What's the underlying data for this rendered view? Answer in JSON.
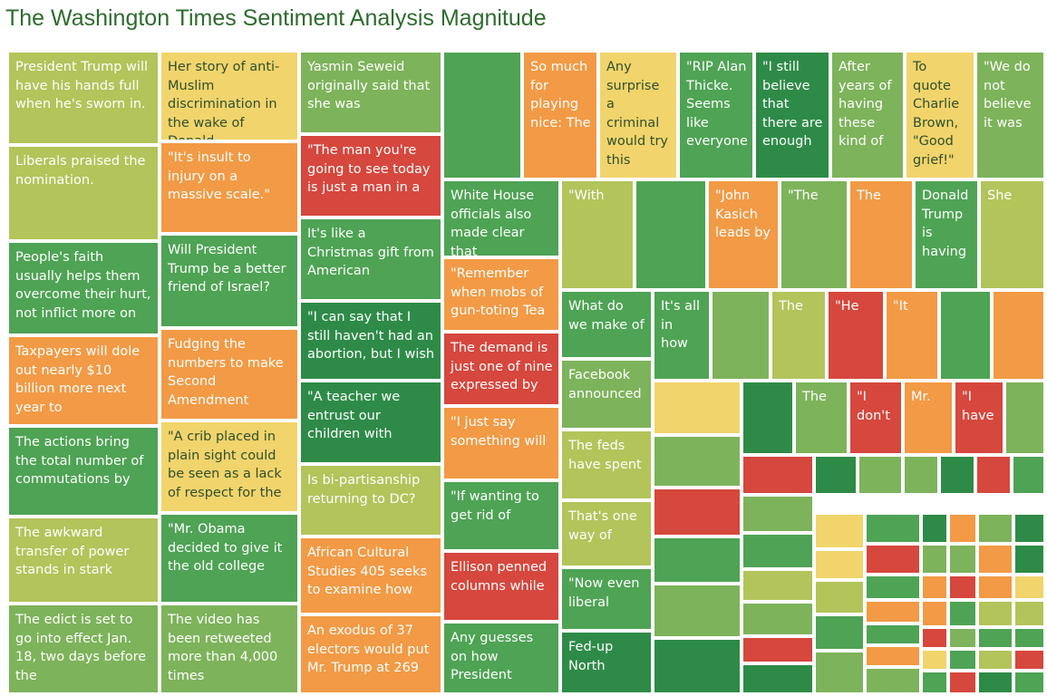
{
  "title": "The Washington Times Sentiment Analysis Magnitude",
  "colors": {
    "dark_green": "#2e8b47",
    "green": "#4ea354",
    "light_green": "#7db35a",
    "yellow_green": "#b2c45a",
    "yellow": "#f1d46b",
    "orange": "#f29a45",
    "red": "#d6473d"
  },
  "chart_data": {
    "type": "treemap",
    "measure": "Sentiment Analysis Magnitude",
    "color_scale": [
      "red",
      "orange",
      "yellow",
      "yellow_green",
      "light_green",
      "green",
      "dark_green"
    ],
    "items": [
      {
        "label": "President Trump will have his hands full when he's sworn in.",
        "color": "yellow_green"
      },
      {
        "label": "Liberals praised the nomination.",
        "color": "yellow_green"
      },
      {
        "label": "People's faith usually helps them overcome their hurt, not inflict more on",
        "color": "green"
      },
      {
        "label": "Taxpayers will dole out nearly $10 billion more next year to",
        "color": "orange"
      },
      {
        "label": "The actions bring the total number of commutations by",
        "color": "green"
      },
      {
        "label": "The awkward transfer of power stands in stark",
        "color": "yellow_green"
      },
      {
        "label": "The edict is set to go into effect Jan. 18, two days before the",
        "color": "light_green"
      },
      {
        "label": "Her story of anti-Muslim discrimination in the wake of Donald",
        "color": "yellow"
      },
      {
        "label": "\"It's insult to injury on a massive scale.\"",
        "color": "orange"
      },
      {
        "label": "Will President Trump be a better friend of Israel?",
        "color": "green"
      },
      {
        "label": "Fudging the numbers to make Second Amendment",
        "color": "orange"
      },
      {
        "label": "\"A crib placed in plain sight could be seen as a lack of respect for the",
        "color": "yellow"
      },
      {
        "label": "\"Mr. Obama decided to give it the old college",
        "color": "green"
      },
      {
        "label": "The video has been retweeted more than 4,000 times",
        "color": "light_green"
      },
      {
        "label": "Yasmin Seweid originally said that she was",
        "color": "light_green"
      },
      {
        "label": "\"The man you're going to see today is just a man in a",
        "color": "red"
      },
      {
        "label": "It's like a Christmas gift from American",
        "color": "green"
      },
      {
        "label": "\"I can say that I still haven't had an abortion, but I wish",
        "color": "dark_green"
      },
      {
        "label": "\"A teacher we entrust our children with",
        "color": "dark_green"
      },
      {
        "label": "Is bi-partisanship returning to DC?",
        "color": "yellow_green"
      },
      {
        "label": "African Cultural Studies 405 seeks to examine how",
        "color": "orange"
      },
      {
        "label": "An exodus of 37 electors would put Mr. Trump at 269",
        "color": "orange"
      },
      {
        "label": "",
        "color": "green"
      },
      {
        "label": "So much for playing nice: The",
        "color": "orange"
      },
      {
        "label": "Any surprise a criminal would try this",
        "color": "yellow"
      },
      {
        "label": "\"RIP Alan Thicke. Seems like everyone",
        "color": "green"
      },
      {
        "label": "\"I still believe that there are enough",
        "color": "dark_green"
      },
      {
        "label": "After years of having these kind of",
        "color": "light_green"
      },
      {
        "label": "To quote Charlie Brown, \"Good grief!\"",
        "color": "yellow"
      },
      {
        "label": "\"We do not believe it was",
        "color": "light_green"
      },
      {
        "label": "White House officials also made clear that",
        "color": "green"
      },
      {
        "label": "\"Remember when mobs of gun-toting Tea",
        "color": "orange"
      },
      {
        "label": "The demand is just one of nine expressed by",
        "color": "red"
      },
      {
        "label": "\"I just say something will",
        "color": "orange"
      },
      {
        "label": "\"If wanting to get rid of",
        "color": "green"
      },
      {
        "label": "Ellison penned columns while",
        "color": "red"
      },
      {
        "label": "Any guesses on how President",
        "color": "green"
      },
      {
        "label": "\"With",
        "color": "yellow_green"
      },
      {
        "label": "",
        "color": "green"
      },
      {
        "label": "\"John Kasich leads by",
        "color": "orange"
      },
      {
        "label": "\"The",
        "color": "light_green"
      },
      {
        "label": "The",
        "color": "orange"
      },
      {
        "label": "Donald Trump is having",
        "color": "green"
      },
      {
        "label": "She",
        "color": "yellow_green"
      },
      {
        "label": "What do we make of",
        "color": "green"
      },
      {
        "label": "It's all in how",
        "color": "green"
      },
      {
        "label": "",
        "color": "light_green"
      },
      {
        "label": "The",
        "color": "yellow_green"
      },
      {
        "label": "\"He",
        "color": "red"
      },
      {
        "label": "\"It",
        "color": "orange"
      },
      {
        "label": "Facebook announced",
        "color": "light_green"
      },
      {
        "label": "The feds have spent",
        "color": "yellow_green"
      },
      {
        "label": "That's one way of",
        "color": "yellow_green"
      },
      {
        "label": "\"Now even liberal",
        "color": "green"
      },
      {
        "label": "Fed-up North",
        "color": "dark_green"
      },
      {
        "label": "The",
        "color": "light_green"
      },
      {
        "label": "\"I don't",
        "color": "red"
      },
      {
        "label": "Mr.",
        "color": "orange"
      },
      {
        "label": "\"I have",
        "color": "red"
      }
    ]
  }
}
